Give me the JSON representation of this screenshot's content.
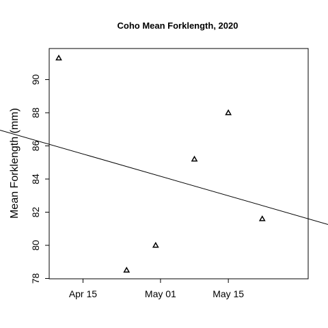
{
  "chart_data": {
    "type": "scatter",
    "title": "Coho Mean Forklength, 2020",
    "xlabel": "",
    "ylabel": "Mean Forklength (mm)",
    "x_ticks": [
      "Apr 15",
      "May 01",
      "May 15"
    ],
    "y_ticks": [
      "78",
      "80",
      "82",
      "84",
      "86",
      "88",
      "90"
    ],
    "ylim": [
      78,
      91.8
    ],
    "xlim": [
      "2020-04-08",
      "2020-05-22"
    ],
    "marker": "open-triangle",
    "grid": false,
    "legend": "none",
    "points": [
      {
        "x": "2020-04-10",
        "y": 91.3
      },
      {
        "x": "2020-04-24",
        "y": 78.5
      },
      {
        "x": "2020-04-30",
        "y": 80.0
      },
      {
        "x": "2020-05-08",
        "y": 85.2
      },
      {
        "x": "2020-05-15",
        "y": 88.0
      },
      {
        "x": "2020-05-22",
        "y": 81.6
      }
    ],
    "trend_line": [
      {
        "x": "2020-04-08",
        "y": 86.1
      },
      {
        "x": "2020-05-22",
        "y": 82.4
      }
    ],
    "colors": {
      "marks": "#000000",
      "background": "#ffffff"
    }
  }
}
